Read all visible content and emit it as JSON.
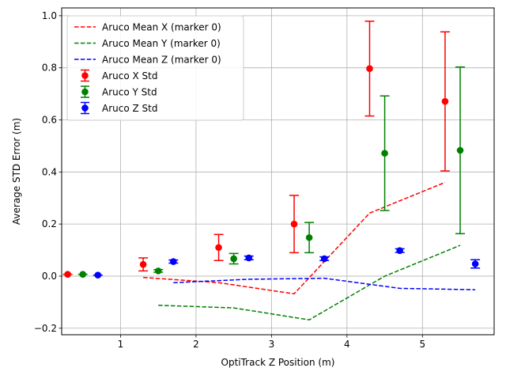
{
  "chart_data": {
    "type": "scatter",
    "xlabel": "OptiTrack Z Position (m)",
    "ylabel": "Average STD Error (m)",
    "xlim": [
      0.22,
      5.95
    ],
    "ylim": [
      -0.225,
      1.03
    ],
    "xticks": [
      1,
      2,
      3,
      4,
      5
    ],
    "yticks": [
      -0.2,
      0.0,
      0.2,
      0.4,
      0.6,
      0.8,
      1.0
    ],
    "grid": true,
    "legend_position": "top-left",
    "mean_series": [
      {
        "name": "Aruco Mean X (marker 0)",
        "color": "#ff0000",
        "x": [
          1.3,
          2.3,
          3.3,
          4.3,
          5.3
        ],
        "y": [
          -0.005,
          -0.025,
          -0.068,
          0.242,
          0.36
        ]
      },
      {
        "name": "Aruco Mean Y (marker 0)",
        "color": "#008000",
        "x": [
          1.5,
          2.5,
          3.5,
          4.5,
          5.5
        ],
        "y": [
          -0.112,
          -0.122,
          -0.168,
          0.0,
          0.118
        ]
      },
      {
        "name": "Aruco Mean Z (marker 0)",
        "color": "#0000ff",
        "x": [
          1.7,
          2.7,
          3.7,
          4.7,
          5.7
        ],
        "y": [
          -0.025,
          -0.012,
          -0.008,
          -0.047,
          -0.052
        ]
      }
    ],
    "std_series": [
      {
        "name": "Aruco X Std",
        "color": "#ff0000",
        "x": [
          0.3,
          1.3,
          2.3,
          3.3,
          4.3,
          5.3
        ],
        "y": [
          0.007,
          0.045,
          0.11,
          0.2,
          0.797,
          0.671
        ],
        "err": [
          0.0,
          0.025,
          0.05,
          0.11,
          0.182,
          0.267
        ]
      },
      {
        "name": "Aruco Y Std",
        "color": "#008000",
        "x": [
          0.5,
          1.5,
          2.5,
          3.5,
          4.5,
          5.5
        ],
        "y": [
          0.007,
          0.02,
          0.067,
          0.148,
          0.472,
          0.483
        ],
        "err": [
          0.0,
          0.005,
          0.02,
          0.058,
          0.22,
          0.32
        ]
      },
      {
        "name": "Aruco Z Std",
        "color": "#0000ff",
        "x": [
          0.7,
          1.7,
          2.7,
          3.7,
          4.7,
          5.7
        ],
        "y": [
          0.004,
          0.056,
          0.07,
          0.067,
          0.098,
          0.047
        ],
        "err": [
          0.0,
          0.006,
          0.007,
          0.007,
          0.007,
          0.016
        ]
      }
    ]
  }
}
